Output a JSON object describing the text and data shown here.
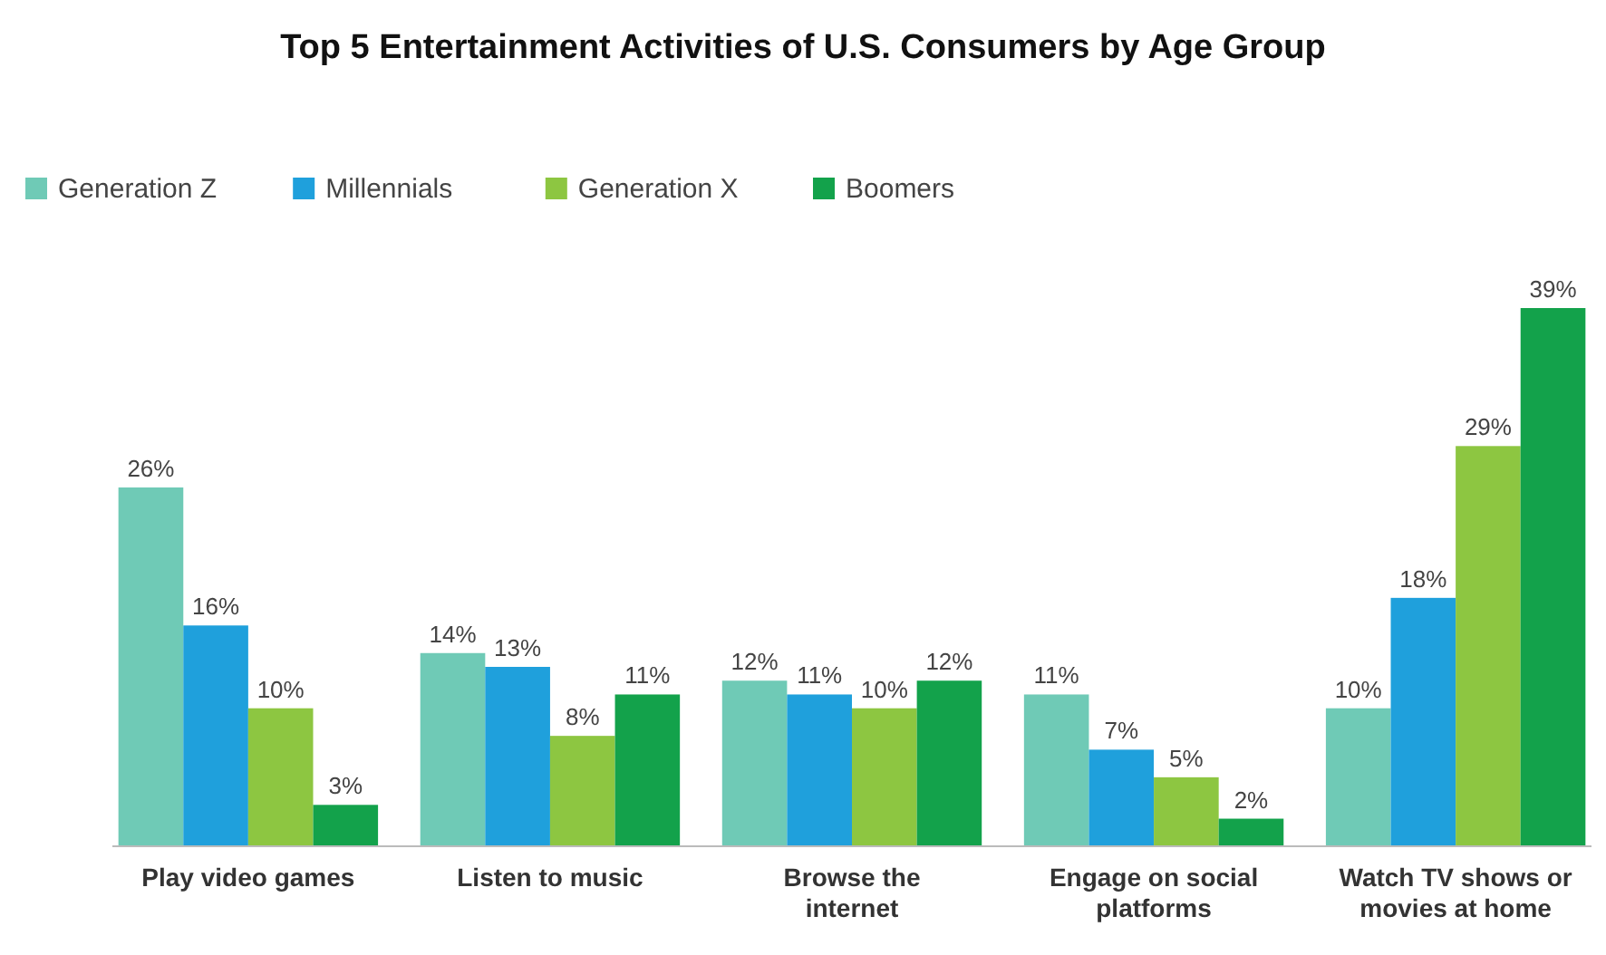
{
  "chart_data": {
    "type": "bar",
    "title": "Top 5 Entertainment Activities of U.S. Consumers by Age Group",
    "categories": [
      "Play video games",
      "Listen to music",
      "Browse the internet",
      "Engage on social platforms",
      "Watch TV shows or movies at home"
    ],
    "series": [
      {
        "name": "Generation Z",
        "color": "#6fcab6",
        "values": [
          26,
          14,
          12,
          11,
          10
        ],
        "value_labels": [
          "26%",
          "14%",
          "12%",
          "11%",
          "10%"
        ]
      },
      {
        "name": "Millennials",
        "color": "#1fa0dc",
        "values": [
          16,
          13,
          11,
          7,
          18
        ],
        "value_labels": [
          "16%",
          "13%",
          "11%",
          "7%",
          "18%"
        ]
      },
      {
        "name": "Generation X",
        "color": "#8dc641",
        "values": [
          10,
          8,
          10,
          5,
          29
        ],
        "value_labels": [
          "10%",
          "8%",
          "10%",
          "5%",
          "29%"
        ]
      },
      {
        "name": "Boomers",
        "color": "#13a24b",
        "values": [
          3,
          11,
          12,
          2,
          39
        ],
        "value_labels": [
          "3%",
          "11%",
          "12%",
          "2%",
          "39%"
        ]
      }
    ],
    "legend": "top left"
  }
}
